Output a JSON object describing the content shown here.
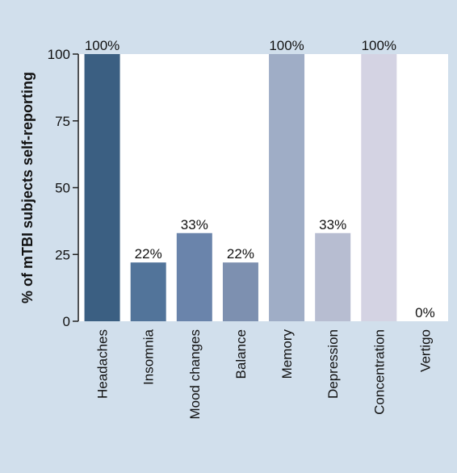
{
  "chart_data": {
    "type": "bar",
    "title": "",
    "xlabel": "",
    "ylabel": "% of mTBI subjects self-reporting",
    "ylim": [
      0,
      100
    ],
    "yticks": [
      0,
      25,
      50,
      75,
      100
    ],
    "categories": [
      "Headaches",
      "Insomnia",
      "Mood changes",
      "Balance",
      "Memory",
      "Depression",
      "Concentration",
      "Vertigo"
    ],
    "values": [
      100,
      22,
      33,
      22,
      100,
      33,
      100,
      0
    ],
    "data_labels": [
      "100%",
      "22%",
      "33%",
      "22%",
      "100%",
      "33%",
      "100%",
      "0%"
    ],
    "bar_colors": [
      "#3b5f82",
      "#52749a",
      "#6a84ab",
      "#7d90b0",
      "#9fadc6",
      "#b7bdd1",
      "#d4d3e3",
      "#d4d3e3"
    ],
    "plot_background": "#ffffff",
    "panel_background": "#d1dfec",
    "grid": false,
    "legend": "none"
  }
}
